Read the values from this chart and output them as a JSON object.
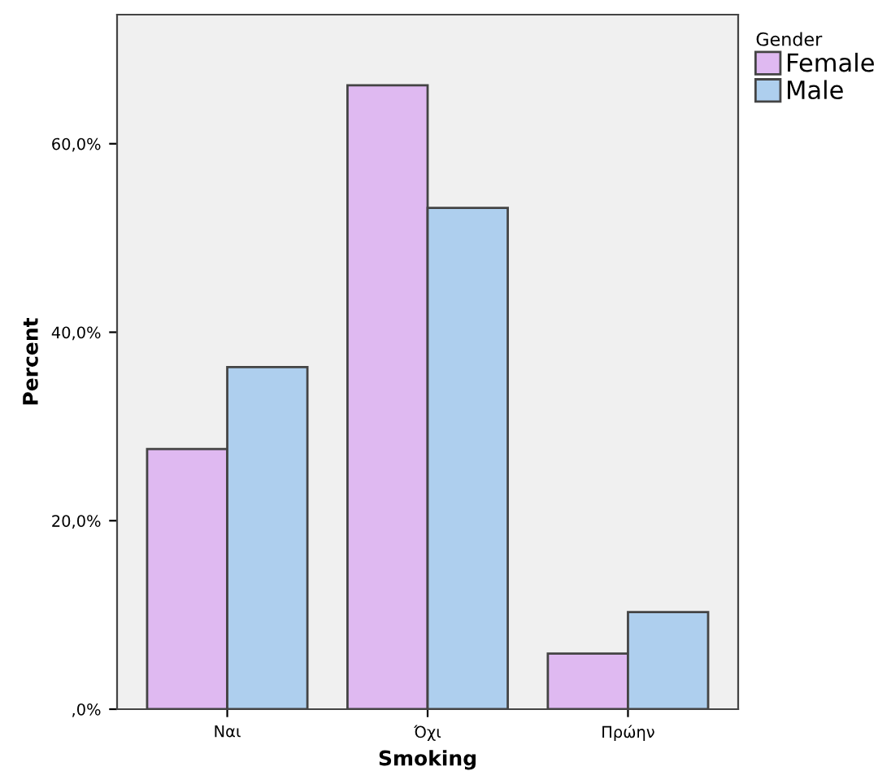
{
  "chart_data": {
    "type": "bar",
    "xlabel": "Smoking",
    "ylabel": "Percent",
    "legend_title": "Gender",
    "legend": "top right",
    "categories": [
      "Ναι",
      "Όχι",
      "Πρώην"
    ],
    "series": [
      {
        "name": "Female",
        "color": "#dfb9f1",
        "values": [
          27.6,
          66.2,
          5.9
        ]
      },
      {
        "name": "Male",
        "color": "#aecfee",
        "values": [
          36.3,
          53.2,
          10.3
        ]
      }
    ],
    "ylim": [
      0,
      73.7
    ],
    "yticks": [
      {
        "value": 0,
        "label": ",0%"
      },
      {
        "value": 20,
        "label": "20,0%"
      },
      {
        "value": 40,
        "label": "40,0%"
      },
      {
        "value": 60,
        "label": "60,0%"
      }
    ],
    "grid": false
  }
}
